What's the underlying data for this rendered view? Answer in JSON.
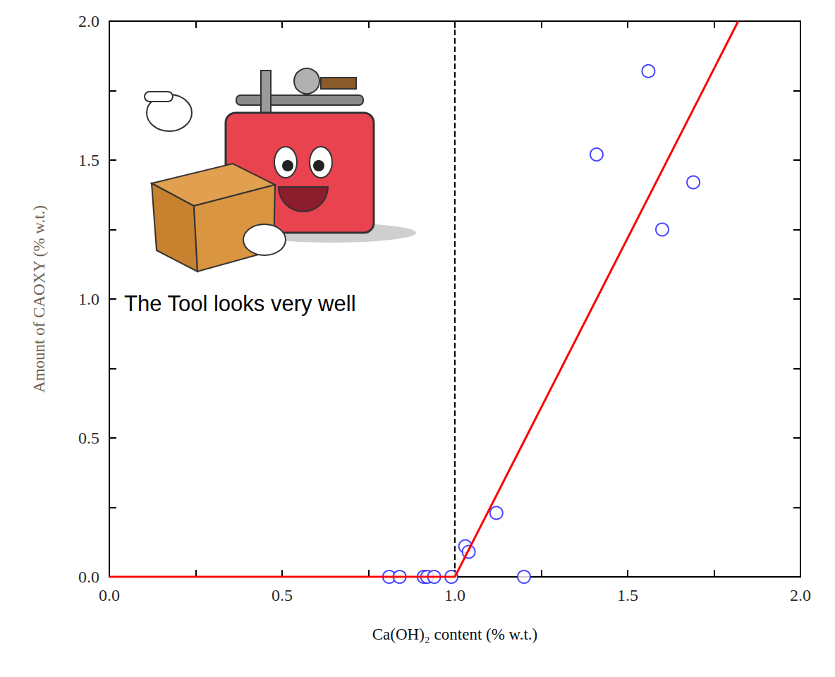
{
  "chart_data": {
    "type": "scatter",
    "x_label": "Ca(OH)₂ content (% w.t.)",
    "y_label": "Amount of CAOXY (% w.t.)",
    "xlim": [
      0,
      2.0
    ],
    "ylim": [
      0,
      2.0
    ],
    "xticks": [
      {
        "value": 0,
        "label": "0.0"
      },
      {
        "value": 0.5,
        "label": "0.5"
      },
      {
        "value": 1.0,
        "label": "1.0"
      },
      {
        "value": 1.5,
        "label": "1.5"
      },
      {
        "value": 2.0,
        "label": "2.0"
      }
    ],
    "yticks": [
      {
        "value": 0,
        "label": "0.0"
      },
      {
        "value": 0.5,
        "label": "0.5"
      },
      {
        "value": 1.0,
        "label": "1.0"
      },
      {
        "value": 1.5,
        "label": "1.5"
      },
      {
        "value": 2.0,
        "label": "2.0"
      }
    ],
    "grid": false,
    "series": [
      {
        "type": "scatter",
        "marker": "open_circle",
        "color": "#1a1aff",
        "x": [
          0.81,
          0.84,
          0.91,
          0.92,
          0.94,
          0.99,
          1.03,
          1.04,
          1.12,
          1.2,
          1.41,
          1.56,
          1.69,
          1.6
        ],
        "values": [
          0,
          0,
          0,
          0,
          0,
          0,
          0.11,
          0.09,
          0.23,
          0,
          1.52,
          1.82,
          1.42,
          1.25
        ]
      },
      {
        "type": "line",
        "line_style": "solid",
        "color": "#ff0000",
        "x": [
          0,
          1.0,
          1.82
        ],
        "values": [
          0,
          0,
          2.0
        ]
      },
      {
        "type": "line",
        "line_style": "dashed",
        "color": "#000000",
        "x": [
          1.0,
          1.0
        ],
        "values": [
          0,
          2.0
        ]
      }
    ],
    "annotations": [
      "The Tool looks very well"
    ]
  }
}
